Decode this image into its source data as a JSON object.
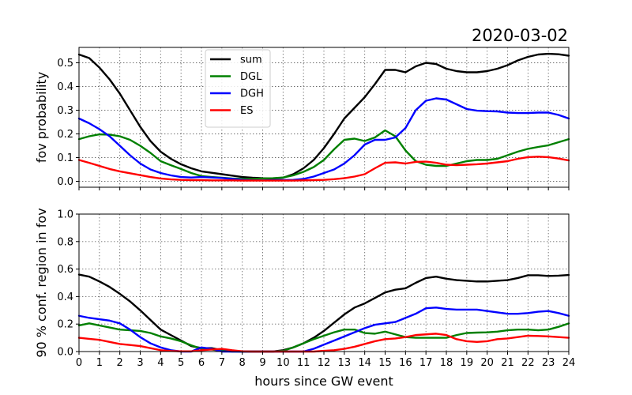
{
  "figure": {
    "title": "2020-03-02",
    "xlabel": "hours since GW event"
  },
  "chart_data": [
    {
      "type": "line",
      "title": "2020-03-02",
      "xlabel": "",
      "ylabel": "fov probability",
      "xlim": [
        0,
        24
      ],
      "ylim": [
        -0.025,
        0.565
      ],
      "yticks": [
        0.0,
        0.1,
        0.2,
        0.3,
        0.4,
        0.5
      ],
      "ytick_labels": [
        "0.0",
        "0.1",
        "0.2",
        "0.3",
        "0.4",
        "0.5"
      ],
      "grid": true,
      "legend": "upper-left",
      "x": [
        0,
        0.5,
        1,
        1.5,
        2,
        2.5,
        3,
        3.5,
        4,
        4.5,
        5,
        5.5,
        6,
        6.5,
        7,
        7.5,
        8,
        8.5,
        9,
        9.5,
        10,
        10.5,
        11,
        11.5,
        12,
        12.5,
        13,
        13.5,
        14,
        14.5,
        15,
        15.5,
        16,
        16.5,
        17,
        17.5,
        18,
        18.5,
        19,
        19.5,
        20,
        20.5,
        21,
        21.5,
        22,
        22.5,
        23,
        23.5,
        24
      ],
      "series": [
        {
          "name": "sum",
          "color": "#000000",
          "values": [
            0.535,
            0.52,
            0.48,
            0.43,
            0.37,
            0.3,
            0.23,
            0.17,
            0.125,
            0.095,
            0.072,
            0.055,
            0.042,
            0.036,
            0.03,
            0.024,
            0.018,
            0.015,
            0.013,
            0.012,
            0.015,
            0.03,
            0.055,
            0.09,
            0.14,
            0.2,
            0.265,
            0.31,
            0.355,
            0.41,
            0.47,
            0.47,
            0.46,
            0.485,
            0.5,
            0.495,
            0.475,
            0.465,
            0.46,
            0.46,
            0.465,
            0.475,
            0.49,
            0.51,
            0.525,
            0.535,
            0.538,
            0.536,
            0.53
          ]
        },
        {
          "name": "DGL",
          "color": "#008000",
          "values": [
            0.178,
            0.19,
            0.198,
            0.197,
            0.19,
            0.175,
            0.15,
            0.12,
            0.085,
            0.068,
            0.052,
            0.035,
            0.022,
            0.018,
            0.015,
            0.012,
            0.01,
            0.01,
            0.012,
            0.013,
            0.016,
            0.025,
            0.04,
            0.06,
            0.09,
            0.135,
            0.175,
            0.18,
            0.17,
            0.185,
            0.215,
            0.19,
            0.13,
            0.085,
            0.07,
            0.065,
            0.065,
            0.075,
            0.085,
            0.09,
            0.09,
            0.095,
            0.11,
            0.125,
            0.137,
            0.145,
            0.152,
            0.165,
            0.178
          ]
        },
        {
          "name": "DGH",
          "color": "#0000ff",
          "values": [
            0.265,
            0.245,
            0.22,
            0.19,
            0.15,
            0.11,
            0.075,
            0.05,
            0.035,
            0.025,
            0.018,
            0.016,
            0.018,
            0.016,
            0.014,
            0.01,
            0.006,
            0.004,
            0.004,
            0.005,
            0.005,
            0.006,
            0.01,
            0.02,
            0.035,
            0.05,
            0.075,
            0.11,
            0.155,
            0.175,
            0.175,
            0.185,
            0.225,
            0.3,
            0.34,
            0.35,
            0.345,
            0.325,
            0.305,
            0.298,
            0.296,
            0.295,
            0.29,
            0.288,
            0.288,
            0.29,
            0.29,
            0.28,
            0.265
          ]
        },
        {
          "name": "ES",
          "color": "#ff0000",
          "values": [
            0.09,
            0.078,
            0.065,
            0.052,
            0.042,
            0.034,
            0.026,
            0.018,
            0.012,
            0.008,
            0.006,
            0.005,
            0.005,
            0.004,
            0.004,
            0.004,
            0.003,
            0.003,
            0.003,
            0.003,
            0.003,
            0.003,
            0.004,
            0.005,
            0.006,
            0.009,
            0.013,
            0.02,
            0.03,
            0.055,
            0.078,
            0.08,
            0.075,
            0.082,
            0.083,
            0.078,
            0.07,
            0.068,
            0.07,
            0.072,
            0.075,
            0.08,
            0.085,
            0.095,
            0.102,
            0.104,
            0.102,
            0.096,
            0.088
          ]
        }
      ]
    },
    {
      "type": "line",
      "xlabel": "hours since GW event",
      "ylabel": "90 % conf. region in fov",
      "xlim": [
        0,
        24
      ],
      "ylim": [
        0,
        1.0
      ],
      "xticks": [
        0,
        1,
        2,
        3,
        4,
        5,
        6,
        7,
        8,
        9,
        10,
        11,
        12,
        13,
        14,
        15,
        16,
        17,
        18,
        19,
        20,
        21,
        22,
        23,
        24
      ],
      "xtick_labels": [
        "0",
        "1",
        "2",
        "3",
        "4",
        "5",
        "6",
        "7",
        "8",
        "9",
        "10",
        "11",
        "12",
        "13",
        "14",
        "15",
        "16",
        "17",
        "18",
        "19",
        "20",
        "21",
        "22",
        "23",
        "24"
      ],
      "yticks": [
        0.0,
        0.2,
        0.4,
        0.6,
        0.8,
        1.0
      ],
      "ytick_labels": [
        "0.0",
        "0.2",
        "0.4",
        "0.6",
        "0.8",
        "1.0"
      ],
      "grid": true,
      "x": [
        0,
        0.5,
        1,
        1.5,
        2,
        2.5,
        3,
        3.5,
        4,
        4.5,
        5,
        5.5,
        6,
        6.5,
        7,
        7.5,
        8,
        8.5,
        9,
        9.5,
        10,
        10.5,
        11,
        11.5,
        12,
        12.5,
        13,
        13.5,
        14,
        14.5,
        15,
        15.5,
        16,
        16.5,
        17,
        17.5,
        18,
        18.5,
        19,
        19.5,
        20,
        20.5,
        21,
        21.5,
        22,
        22.5,
        23,
        23.5,
        24
      ],
      "series": [
        {
          "name": "sum",
          "color": "#000000",
          "values": [
            0.56,
            0.545,
            0.51,
            0.47,
            0.42,
            0.365,
            0.3,
            0.23,
            0.16,
            0.12,
            0.08,
            0.04,
            0.025,
            0.025,
            0.01,
            0.002,
            0.0,
            0.0,
            0.0,
            0.0,
            0.01,
            0.03,
            0.06,
            0.1,
            0.15,
            0.21,
            0.27,
            0.32,
            0.35,
            0.39,
            0.43,
            0.45,
            0.46,
            0.5,
            0.535,
            0.545,
            0.53,
            0.52,
            0.515,
            0.51,
            0.51,
            0.515,
            0.52,
            0.535,
            0.555,
            0.555,
            0.55,
            0.552,
            0.557
          ]
        },
        {
          "name": "DGL",
          "color": "#008000",
          "values": [
            0.19,
            0.205,
            0.19,
            0.175,
            0.16,
            0.155,
            0.15,
            0.135,
            0.11,
            0.095,
            0.075,
            0.045,
            0.02,
            0.015,
            0.005,
            0.0,
            0.0,
            0.0,
            0.0,
            0.0,
            0.005,
            0.03,
            0.06,
            0.09,
            0.115,
            0.14,
            0.16,
            0.16,
            0.135,
            0.13,
            0.145,
            0.125,
            0.105,
            0.1,
            0.1,
            0.1,
            0.1,
            0.12,
            0.135,
            0.138,
            0.14,
            0.145,
            0.155,
            0.16,
            0.16,
            0.155,
            0.16,
            0.18,
            0.205
          ]
        },
        {
          "name": "DGH",
          "color": "#0000ff",
          "values": [
            0.26,
            0.245,
            0.235,
            0.225,
            0.205,
            0.16,
            0.105,
            0.06,
            0.03,
            0.01,
            0.0,
            0.0,
            0.03,
            0.02,
            0.0,
            0.0,
            0.0,
            0.0,
            0.0,
            0.0,
            0.0,
            0.0,
            0.0,
            0.02,
            0.05,
            0.08,
            0.11,
            0.14,
            0.17,
            0.195,
            0.205,
            0.215,
            0.245,
            0.275,
            0.315,
            0.32,
            0.31,
            0.305,
            0.305,
            0.305,
            0.295,
            0.285,
            0.275,
            0.275,
            0.28,
            0.29,
            0.295,
            0.28,
            0.26
          ]
        },
        {
          "name": "ES",
          "color": "#ff0000",
          "values": [
            0.1,
            0.092,
            0.085,
            0.07,
            0.055,
            0.048,
            0.04,
            0.025,
            0.01,
            0.004,
            0.002,
            0.002,
            0.01,
            0.015,
            0.02,
            0.01,
            0.002,
            0.0,
            0.0,
            0.0,
            0.0,
            0.0,
            0.0,
            0.0,
            0.005,
            0.01,
            0.02,
            0.035,
            0.055,
            0.075,
            0.09,
            0.095,
            0.105,
            0.12,
            0.125,
            0.13,
            0.12,
            0.09,
            0.075,
            0.07,
            0.075,
            0.09,
            0.095,
            0.105,
            0.115,
            0.113,
            0.11,
            0.105,
            0.1
          ]
        }
      ]
    }
  ]
}
